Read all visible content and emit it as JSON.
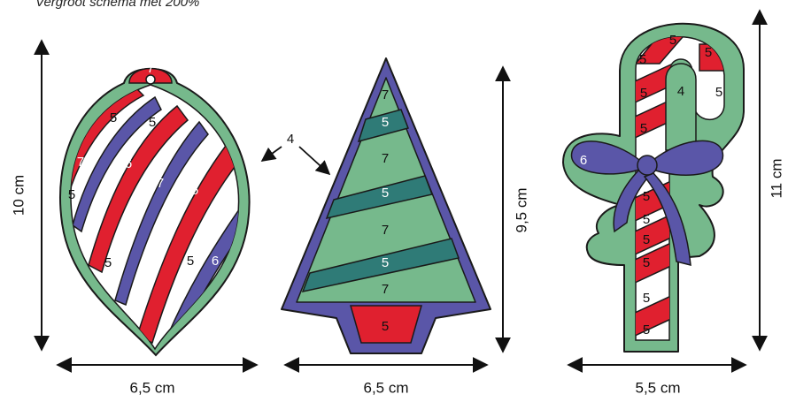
{
  "caption": "Vergroot schema met 200%",
  "colors": {
    "red": "#e0202f",
    "blue": "#5a56a8",
    "green": "#76b98c",
    "teal": "#2f7b77",
    "white": "#ffffff",
    "outline": "#1a1a1a"
  },
  "ornament": {
    "width": "6,5 cm",
    "height": "10 cm",
    "labels": {
      "top": "7",
      "s1": "5",
      "s2": "7",
      "s3": "6",
      "s4": "5",
      "s5": "5",
      "s6": "7",
      "s7": "6",
      "s8": "7",
      "s9": "5",
      "s10": "5",
      "s11": "6"
    }
  },
  "tree": {
    "width": "6,5 cm",
    "height": "9,5 cm",
    "callout": "4",
    "labels": {
      "b1": "7",
      "b2": "5",
      "b3": "7",
      "b4": "5",
      "b5": "7",
      "b6": "5",
      "b7": "7",
      "trunk": "5"
    }
  },
  "cane": {
    "width": "5,5 cm",
    "height": "11 cm",
    "labels": {
      "h1": "5",
      "h2": "5",
      "h3": "5",
      "h4": "5",
      "h5": "5",
      "h6": "5",
      "inner": "4",
      "bow": "6",
      "t1": "5",
      "t2": "5",
      "t3": "5",
      "t4": "5",
      "t5": "5",
      "t6": "5"
    }
  }
}
